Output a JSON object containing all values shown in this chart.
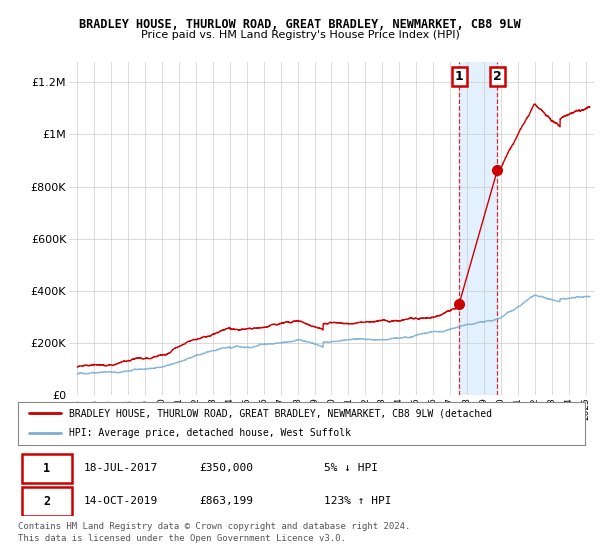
{
  "title": "BRADLEY HOUSE, THURLOW ROAD, GREAT BRADLEY, NEWMARKET, CB8 9LW",
  "subtitle": "Price paid vs. HM Land Registry's House Price Index (HPI)",
  "ylabel_ticks": [
    0,
    200000,
    400000,
    600000,
    800000,
    1000000,
    1200000
  ],
  "ylabel_labels": [
    "£0",
    "£200K",
    "£400K",
    "£600K",
    "£800K",
    "£1M",
    "£1.2M"
  ],
  "xlim": [
    1994.5,
    2025.5
  ],
  "ylim": [
    0,
    1280000
  ],
  "sale1_x": 2017.54,
  "sale1_y": 350000,
  "sale2_x": 2019.79,
  "sale2_y": 863199,
  "hpi_color": "#7aaed4",
  "property_color": "#cc0000",
  "shade_color": "#ddeeff",
  "legend_property": "BRADLEY HOUSE, THURLOW ROAD, GREAT BRADLEY, NEWMARKET, CB8 9LW (detached",
  "legend_hpi": "HPI: Average price, detached house, West Suffolk",
  "table_row1": [
    "1",
    "18-JUL-2017",
    "£350,000",
    "5% ↓ HPI"
  ],
  "table_row2": [
    "2",
    "14-OCT-2019",
    "£863,199",
    "123% ↑ HPI"
  ],
  "footnote": "Contains HM Land Registry data © Crown copyright and database right 2024.\nThis data is licensed under the Open Government Licence v3.0.",
  "bg_color": "#ffffff",
  "grid_color": "#cccccc",
  "n_points": 3650
}
